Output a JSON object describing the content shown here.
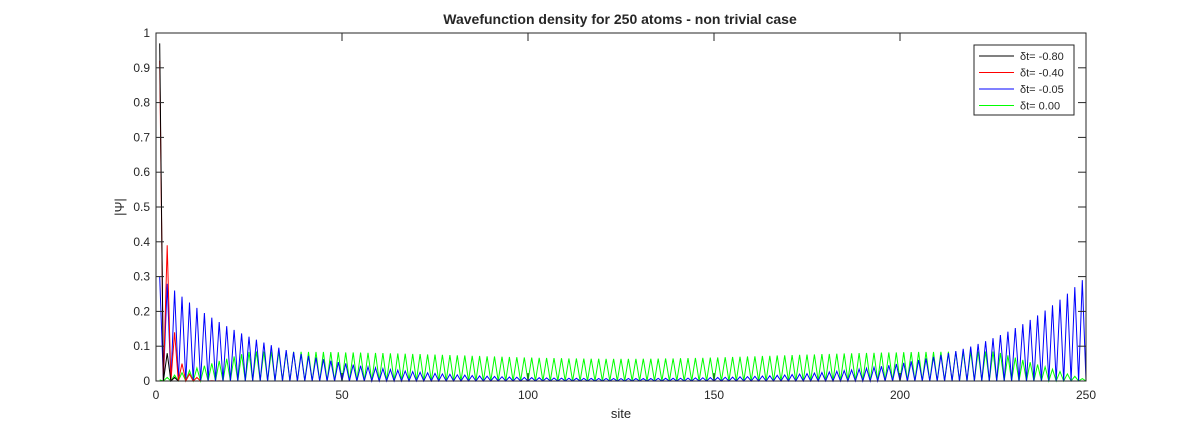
{
  "chart_data": {
    "type": "line",
    "title": "Wavefunction density for 250 atoms - non trivial case",
    "xlabel": "site",
    "ylabel": "|Ψ|",
    "xlim": [
      0,
      250
    ],
    "ylim": [
      0,
      1
    ],
    "x_ticks": [
      "0",
      "50",
      "100",
      "150",
      "200",
      "250"
    ],
    "y_ticks": [
      "0",
      "0.1",
      "0.2",
      "0.3",
      "0.4",
      "0.5",
      "0.6",
      "0.7",
      "0.8",
      "0.9",
      "1"
    ],
    "grid": false,
    "legend_position": "top-right",
    "series": [
      {
        "name": "δt= -0.80",
        "color": "#000000",
        "peak_sites": [
          1,
          3,
          5,
          7
        ],
        "peak_values": [
          0.97,
          0.08,
          0.01,
          0.0
        ]
      },
      {
        "name": "δt= -0.40",
        "color": "#ff0000",
        "peak_sites": [
          1,
          3,
          5,
          7,
          9,
          11,
          13
        ],
        "peak_values": [
          0.92,
          0.39,
          0.14,
          0.05,
          0.02,
          0.01,
          0.0
        ]
      },
      {
        "name": "δt= -0.05",
        "color": "#0000ff",
        "envelope": "symmetric decaying oscillation",
        "edge_value_left": 0.3,
        "edge_value_right": 0.3,
        "center_value": 0.0
      },
      {
        "name": "δt= 0.00",
        "color": "#00ff00",
        "envelope": "standing-wave oscillation",
        "edge_value": 0.0,
        "plateau_value": 0.085,
        "center_value": 0.065
      }
    ]
  }
}
